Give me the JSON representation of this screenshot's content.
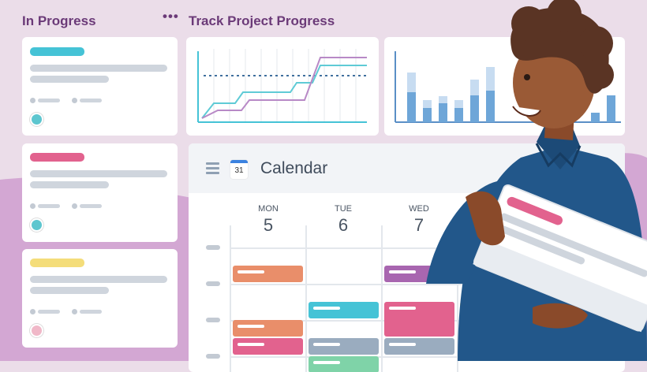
{
  "header": {
    "left_title": "In Progress",
    "right_title": "Track Project Progress",
    "more_icon": "ellipsis-icon"
  },
  "cards": [
    {
      "label_color": "#45c3d6"
    },
    {
      "label_color": "#e2628e"
    },
    {
      "label_color": "#f4dd7a"
    }
  ],
  "calendar": {
    "title": "Calendar",
    "icon_day": "31",
    "days": [
      {
        "name": "MON",
        "date": "5"
      },
      {
        "name": "TUE",
        "date": "6"
      },
      {
        "name": "WED",
        "date": "7"
      }
    ]
  },
  "colors": {
    "accent": "#6b3a78",
    "teal": "#45c3d6",
    "pink": "#e2628e",
    "orange": "#e98e6a",
    "purple": "#a866b0",
    "gray": "#9aacbf",
    "yellow": "#f4dd7a",
    "shirt": "#22578a"
  }
}
